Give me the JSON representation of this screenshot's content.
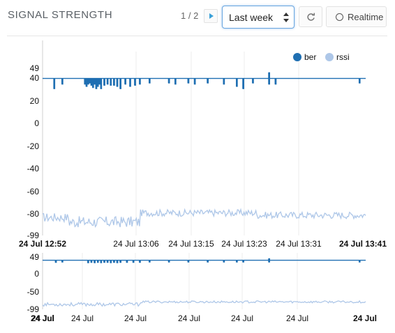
{
  "header": {
    "title": "SIGNAL STRENGTH",
    "pager_text": "1 / 2",
    "period_select": "Last week",
    "refresh_icon": "refresh-icon",
    "realtime_label": "Realtime"
  },
  "colors": {
    "ber": "#1f6fb2",
    "rssi": "#aec7e8",
    "grid": "#eeeeee"
  },
  "chart_data": [
    {
      "type": "line",
      "legend": [
        "ber",
        "rssi"
      ],
      "legend_position": "top-right",
      "grid": true,
      "ylim": [
        -99,
        49
      ],
      "yticks": [
        "49",
        "40",
        "20",
        "0",
        "-20",
        "-40",
        "-60",
        "-80",
        "-99"
      ],
      "xticks": [
        "24 Jul 12:52",
        "24 Jul 13:06",
        "24 Jul 13:15",
        "24 Jul 13:23",
        "24 Jul 13:31",
        "24 Jul 13:41"
      ],
      "series": [
        {
          "name": "ber",
          "baseline": 40,
          "dips": [
            {
              "x": 0.035,
              "y": 31
            },
            {
              "x": 0.06,
              "y": 35
            },
            {
              "x": 0.13,
              "y": 35
            },
            {
              "x": 0.135,
              "y": 33
            },
            {
              "x": 0.14,
              "y": 35
            },
            {
              "x": 0.145,
              "y": 36
            },
            {
              "x": 0.15,
              "y": 34
            },
            {
              "x": 0.155,
              "y": 32
            },
            {
              "x": 0.16,
              "y": 35
            },
            {
              "x": 0.165,
              "y": 31
            },
            {
              "x": 0.17,
              "y": 33
            },
            {
              "x": 0.175,
              "y": 35
            },
            {
              "x": 0.18,
              "y": 31
            },
            {
              "x": 0.19,
              "y": 34
            },
            {
              "x": 0.2,
              "y": 35
            },
            {
              "x": 0.21,
              "y": 34
            },
            {
              "x": 0.22,
              "y": 34
            },
            {
              "x": 0.23,
              "y": 33
            },
            {
              "x": 0.24,
              "y": 31
            },
            {
              "x": 0.255,
              "y": 35
            },
            {
              "x": 0.27,
              "y": 33
            },
            {
              "x": 0.285,
              "y": 34
            },
            {
              "x": 0.3,
              "y": 35
            },
            {
              "x": 0.33,
              "y": 36
            },
            {
              "x": 0.39,
              "y": 36
            },
            {
              "x": 0.41,
              "y": 35
            },
            {
              "x": 0.45,
              "y": 36
            },
            {
              "x": 0.47,
              "y": 35
            },
            {
              "x": 0.51,
              "y": 36
            },
            {
              "x": 0.56,
              "y": 35
            },
            {
              "x": 0.6,
              "y": 33
            },
            {
              "x": 0.62,
              "y": 31
            },
            {
              "x": 0.65,
              "y": 36
            },
            {
              "x": 0.7,
              "y": 35
            },
            {
              "x": 0.72,
              "y": 35
            },
            {
              "x": 0.98,
              "y": 36
            }
          ],
          "spikes": [
            {
              "x": 0.7,
              "y": 45
            }
          ]
        },
        {
          "name": "rssi",
          "segments": [
            {
              "x0": 0.0,
              "x1": 0.08,
              "mean": -83,
              "amp": 4
            },
            {
              "x0": 0.08,
              "x1": 0.3,
              "mean": -87,
              "amp": 5
            },
            {
              "x0": 0.3,
              "x1": 0.66,
              "mean": -79,
              "amp": 3
            },
            {
              "x0": 0.66,
              "x1": 1.0,
              "mean": -81,
              "amp": 3
            }
          ]
        }
      ]
    },
    {
      "type": "line",
      "grid": true,
      "ylim": [
        -99,
        49
      ],
      "yticks": [
        "49",
        "0",
        "-50",
        "-99"
      ],
      "xticks": [
        "24 Jul",
        "24 Jul",
        "24 Jul",
        "24 Jul",
        "24 Jul",
        "24 Jul",
        "24 Jul",
        "24 Jul"
      ],
      "series": [
        {
          "name": "ber",
          "baseline": 40,
          "dips": [
            {
              "x": 0.04,
              "y": 34
            },
            {
              "x": 0.06,
              "y": 35
            },
            {
              "x": 0.14,
              "y": 33
            },
            {
              "x": 0.15,
              "y": 34
            },
            {
              "x": 0.16,
              "y": 33
            },
            {
              "x": 0.17,
              "y": 34
            },
            {
              "x": 0.18,
              "y": 33
            },
            {
              "x": 0.19,
              "y": 34
            },
            {
              "x": 0.2,
              "y": 34
            },
            {
              "x": 0.21,
              "y": 33
            },
            {
              "x": 0.22,
              "y": 34
            },
            {
              "x": 0.23,
              "y": 33
            },
            {
              "x": 0.24,
              "y": 34
            },
            {
              "x": 0.26,
              "y": 34
            },
            {
              "x": 0.28,
              "y": 34
            },
            {
              "x": 0.3,
              "y": 34
            },
            {
              "x": 0.33,
              "y": 35
            },
            {
              "x": 0.39,
              "y": 35
            },
            {
              "x": 0.45,
              "y": 35
            },
            {
              "x": 0.51,
              "y": 35
            },
            {
              "x": 0.56,
              "y": 35
            },
            {
              "x": 0.6,
              "y": 35
            },
            {
              "x": 0.62,
              "y": 35
            },
            {
              "x": 0.7,
              "y": 35
            },
            {
              "x": 0.98,
              "y": 35
            }
          ],
          "spikes": [
            {
              "x": 0.7,
              "y": 44
            }
          ]
        },
        {
          "name": "rssi",
          "segments": [
            {
              "x0": 0.0,
              "x1": 0.3,
              "mean": -85,
              "amp": 5
            },
            {
              "x0": 0.3,
              "x1": 1.0,
              "mean": -78,
              "amp": 3
            }
          ]
        }
      ]
    }
  ]
}
